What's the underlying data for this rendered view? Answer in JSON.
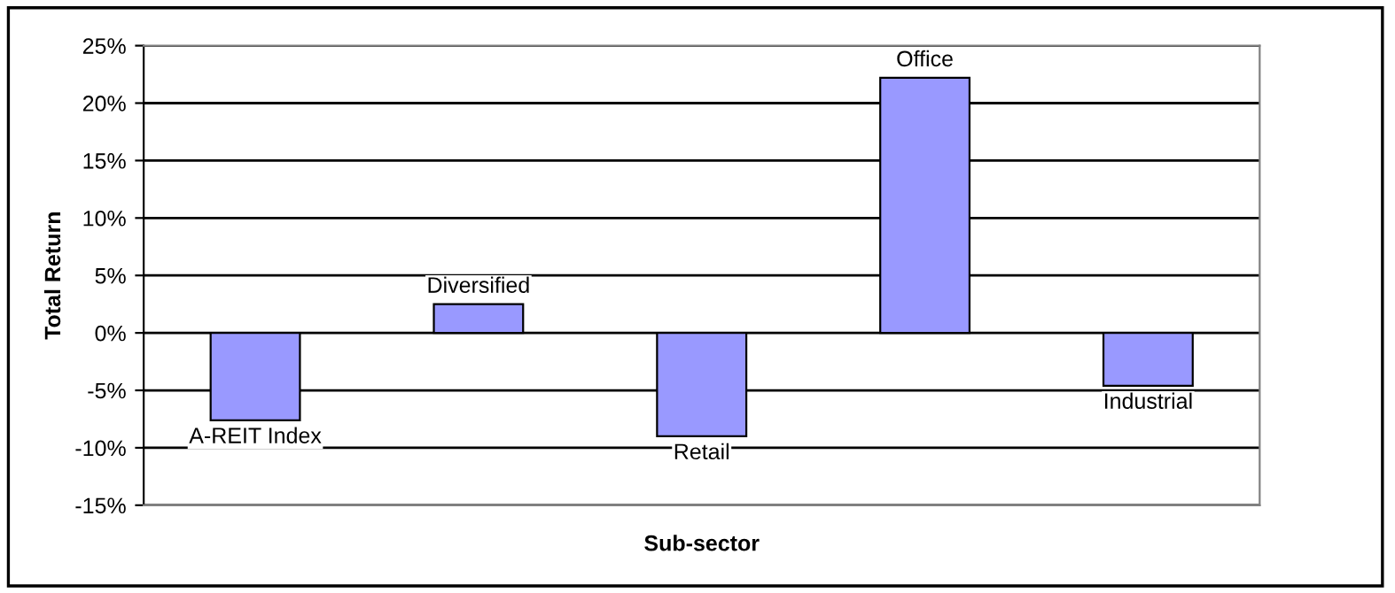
{
  "chart_data": {
    "type": "bar",
    "xlabel": "Sub-sector",
    "ylabel": "Total Return",
    "categories": [
      "A-REIT Index",
      "Diversified",
      "Retail",
      "Office",
      "Industrial"
    ],
    "values": [
      -7.6,
      2.5,
      -9.0,
      22.2,
      -4.6
    ],
    "color": "#9999ff",
    "ylim": [
      -15,
      25
    ],
    "yticks": [
      {
        "value": -15,
        "label": "-15%"
      },
      {
        "value": -10,
        "label": "-10%"
      },
      {
        "value": -5,
        "label": "-5%"
      },
      {
        "value": 0,
        "label": "0%"
      },
      {
        "value": 5,
        "label": "5%"
      },
      {
        "value": 10,
        "label": "10%"
      },
      {
        "value": 15,
        "label": "15%"
      },
      {
        "value": 20,
        "label": "20%"
      },
      {
        "value": 25,
        "label": "25%"
      }
    ],
    "grid": "y",
    "tick_labels": "y"
  }
}
